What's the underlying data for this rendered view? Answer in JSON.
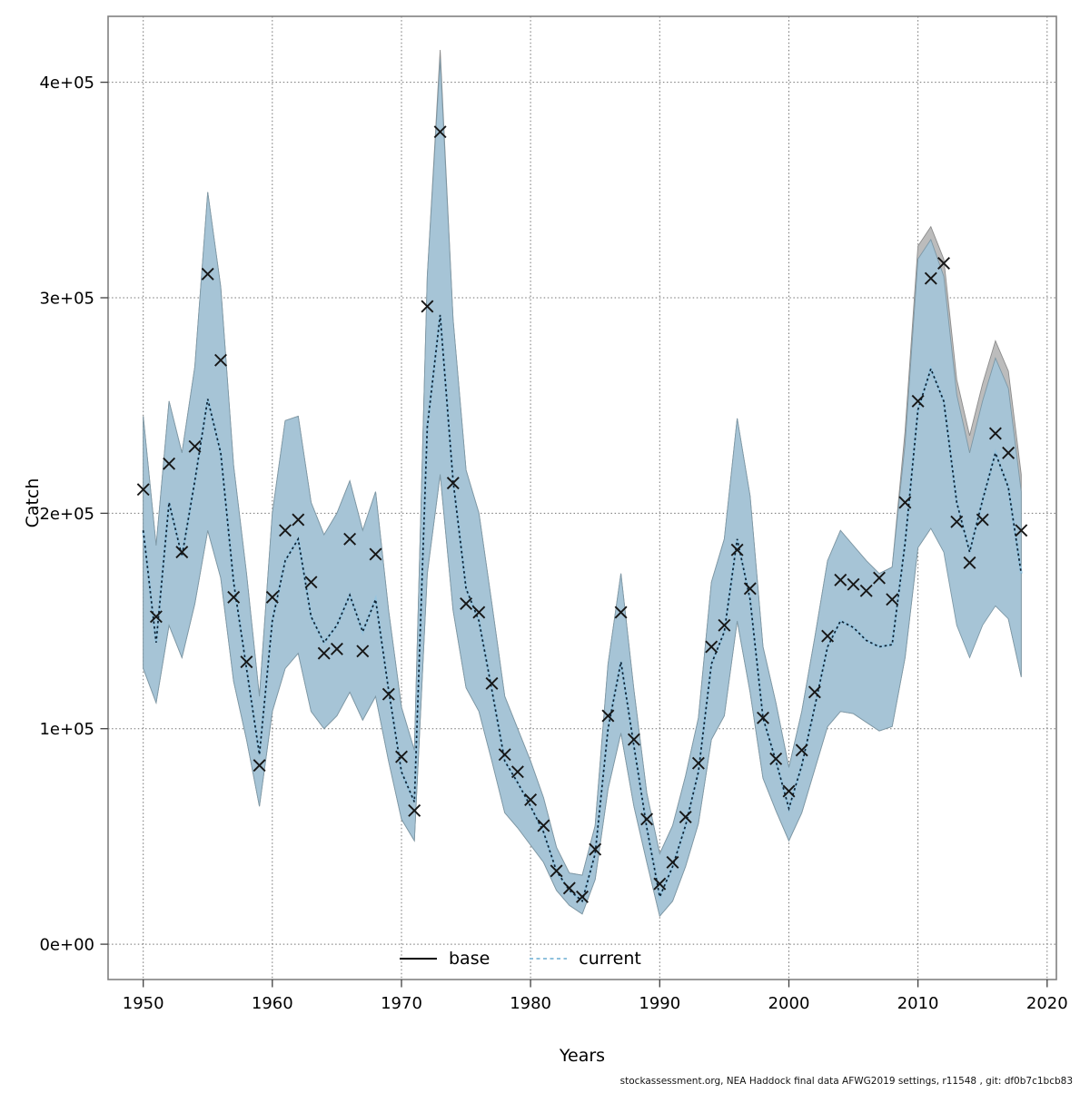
{
  "figure": {
    "x_label": "Years",
    "y_label": "Catch",
    "caption": "stockassessment.org, NEA Haddock final data AFWG2019 settings, r11548 , git: df0b7c1bcb83",
    "legend": [
      {
        "label": "base",
        "style": "solid",
        "color": "#000000"
      },
      {
        "label": "current",
        "style": "dashed",
        "color": "#8fc1dd"
      }
    ]
  },
  "chart_data": {
    "type": "line",
    "title": "",
    "xlabel": "Years",
    "ylabel": "Catch",
    "xlim": [
      1947.28,
      2020.72
    ],
    "ylim": [
      -16400,
      430600
    ],
    "grid": true,
    "legend_position": "bottom-center-inside",
    "x_ticks": {
      "values": [
        1950,
        1960,
        1970,
        1980,
        1990,
        2000,
        2010,
        2020
      ],
      "labels": [
        "1950",
        "1960",
        "1970",
        "1980",
        "1990",
        "2000",
        "2010",
        "2020"
      ]
    },
    "y_ticks": {
      "values": [
        0,
        100000,
        200000,
        300000,
        400000
      ],
      "labels": [
        "0e+00",
        "1e+05",
        "2e+05",
        "3e+05",
        "4e+05"
      ]
    },
    "years": [
      1950,
      1951,
      1952,
      1953,
      1954,
      1955,
      1956,
      1957,
      1958,
      1959,
      1960,
      1961,
      1962,
      1963,
      1964,
      1965,
      1966,
      1967,
      1968,
      1969,
      1970,
      1971,
      1972,
      1973,
      1974,
      1975,
      1976,
      1977,
      1978,
      1979,
      1980,
      1981,
      1982,
      1983,
      1984,
      1985,
      1986,
      1987,
      1988,
      1989,
      1990,
      1991,
      1992,
      1993,
      1994,
      1995,
      1996,
      1997,
      1998,
      1999,
      2000,
      2001,
      2002,
      2003,
      2004,
      2005,
      2006,
      2007,
      2008,
      2009,
      2010,
      2011,
      2012,
      2013,
      2014,
      2015,
      2016,
      2017,
      2018
    ],
    "series": [
      {
        "name": "observed-catch",
        "kind": "marker-x",
        "color": "#161616",
        "values": [
          211000,
          152000,
          223000,
          182000,
          231000,
          311000,
          271000,
          161000,
          131000,
          83000,
          161000,
          192000,
          197000,
          168000,
          135000,
          137000,
          188000,
          136000,
          181000,
          116000,
          87000,
          62000,
          296000,
          377000,
          214000,
          158000,
          154000,
          121000,
          88000,
          80000,
          67000,
          55000,
          34000,
          26000,
          22000,
          44000,
          106000,
          154000,
          95000,
          58000,
          28000,
          38000,
          59000,
          84000,
          138000,
          148000,
          183000,
          165000,
          105000,
          86000,
          71000,
          90000,
          117000,
          143000,
          169000,
          167000,
          164000,
          170000,
          160000,
          205000,
          252000,
          309000,
          316000,
          196000,
          177000,
          197000,
          237000,
          228000,
          192000
        ]
      },
      {
        "name": "base",
        "kind": "line-with-band",
        "line_style": "solid",
        "line_color": "#111111",
        "band_color": "#bcbcbc",
        "band_edge_color": "#8c8c8c",
        "fit": [
          192000,
          140000,
          205000,
          180000,
          215000,
          253000,
          228000,
          168000,
          128000,
          88000,
          150000,
          178000,
          188000,
          152000,
          140000,
          148000,
          162000,
          145000,
          160000,
          118000,
          80000,
          66000,
          240000,
          292000,
          215000,
          165000,
          150000,
          118000,
          85000,
          75000,
          64000,
          52000,
          34000,
          25000,
          20000,
          42000,
          100000,
          131000,
          92000,
          54000,
          22000,
          36000,
          55000,
          80000,
          130000,
          145000,
          188000,
          160000,
          105000,
          85000,
          63000,
          83000,
          110000,
          138000,
          150000,
          147000,
          141000,
          138000,
          139000,
          186000,
          248000,
          267000,
          252000,
          205000,
          182000,
          206000,
          228000,
          212000,
          172000
        ],
        "hi": [
          245000,
          185000,
          252000,
          228000,
          268000,
          349000,
          305000,
          222000,
          172000,
          115000,
          200000,
          243000,
          245000,
          205000,
          190000,
          200000,
          215000,
          192000,
          210000,
          155000,
          110000,
          90000,
          310000,
          415000,
          290000,
          220000,
          200000,
          158000,
          115000,
          100000,
          85000,
          68000,
          45000,
          33000,
          32000,
          55000,
          130000,
          172000,
          118000,
          70000,
          42000,
          55000,
          78000,
          105000,
          168000,
          188000,
          244000,
          208000,
          138000,
          112000,
          82000,
          108000,
          142000,
          178000,
          192000,
          185000,
          178000,
          172000,
          175000,
          238000,
          324000,
          333000,
          318000,
          262000,
          236000,
          260000,
          280000,
          266000,
          218000
        ],
        "lo": [
          128000,
          112000,
          148000,
          133000,
          158000,
          192000,
          170000,
          122000,
          95000,
          64000,
          108000,
          128000,
          135000,
          108000,
          100000,
          106000,
          117000,
          104000,
          115000,
          85000,
          58000,
          48000,
          172000,
          218000,
          155000,
          119000,
          108000,
          85000,
          61000,
          54000,
          46000,
          38000,
          25000,
          18000,
          14000,
          30000,
          72000,
          98000,
          64000,
          38000,
          13000,
          20000,
          36000,
          56000,
          95000,
          106000,
          150000,
          117000,
          77000,
          62000,
          48000,
          61000,
          81000,
          101000,
          108000,
          107000,
          103000,
          99000,
          101000,
          133000,
          184000,
          193000,
          187000,
          153000,
          138000,
          153000,
          162000,
          151000,
          124000
        ]
      },
      {
        "name": "current",
        "kind": "line-with-band",
        "line_style": "dashed",
        "line_color": "#0e2233",
        "line_underlay_color": "#97c4de",
        "band_color": "#a6c4d6",
        "band_edge_color": "#7d98a6",
        "fit": [
          192000,
          140000,
          205000,
          180000,
          215000,
          253000,
          228000,
          168000,
          128000,
          88000,
          150000,
          178000,
          188000,
          152000,
          140000,
          148000,
          162000,
          145000,
          160000,
          118000,
          80000,
          66000,
          240000,
          292000,
          215000,
          165000,
          150000,
          118000,
          85000,
          75000,
          64000,
          52000,
          34000,
          25000,
          20000,
          42000,
          100000,
          131000,
          92000,
          54000,
          22000,
          36000,
          55000,
          80000,
          130000,
          145000,
          188000,
          160000,
          105000,
          85000,
          63000,
          83000,
          110000,
          138000,
          150000,
          147000,
          141000,
          138000,
          139000,
          186000,
          248000,
          267000,
          252000,
          205000,
          182000,
          206000,
          228000,
          212000,
          172000
        ],
        "hi": [
          245000,
          185000,
          252000,
          228000,
          268000,
          349000,
          305000,
          222000,
          172000,
          115000,
          200000,
          243000,
          245000,
          205000,
          190000,
          200000,
          215000,
          192000,
          210000,
          155000,
          110000,
          90000,
          310000,
          411000,
          290000,
          220000,
          200000,
          158000,
          115000,
          100000,
          85000,
          68000,
          45000,
          33000,
          32000,
          55000,
          130000,
          172000,
          118000,
          70000,
          42000,
          55000,
          78000,
          105000,
          168000,
          188000,
          244000,
          208000,
          138000,
          112000,
          82000,
          108000,
          142000,
          178000,
          192000,
          185000,
          178000,
          172000,
          175000,
          232000,
          318000,
          327000,
          310000,
          255000,
          228000,
          252000,
          272000,
          258000,
          210000
        ],
        "lo": [
          128000,
          112000,
          148000,
          133000,
          158000,
          192000,
          170000,
          122000,
          95000,
          64000,
          108000,
          128000,
          135000,
          108000,
          100000,
          106000,
          117000,
          104000,
          115000,
          85000,
          58000,
          48000,
          172000,
          218000,
          155000,
          119000,
          108000,
          85000,
          61000,
          54000,
          46000,
          38000,
          25000,
          18000,
          14000,
          30000,
          72000,
          98000,
          64000,
          38000,
          13000,
          20000,
          36000,
          56000,
          95000,
          106000,
          150000,
          117000,
          77000,
          62000,
          48000,
          61000,
          81000,
          101000,
          108000,
          107000,
          103000,
          99000,
          101000,
          133000,
          184000,
          193000,
          182000,
          148000,
          133000,
          148000,
          157000,
          151000,
          124000
        ]
      }
    ]
  }
}
